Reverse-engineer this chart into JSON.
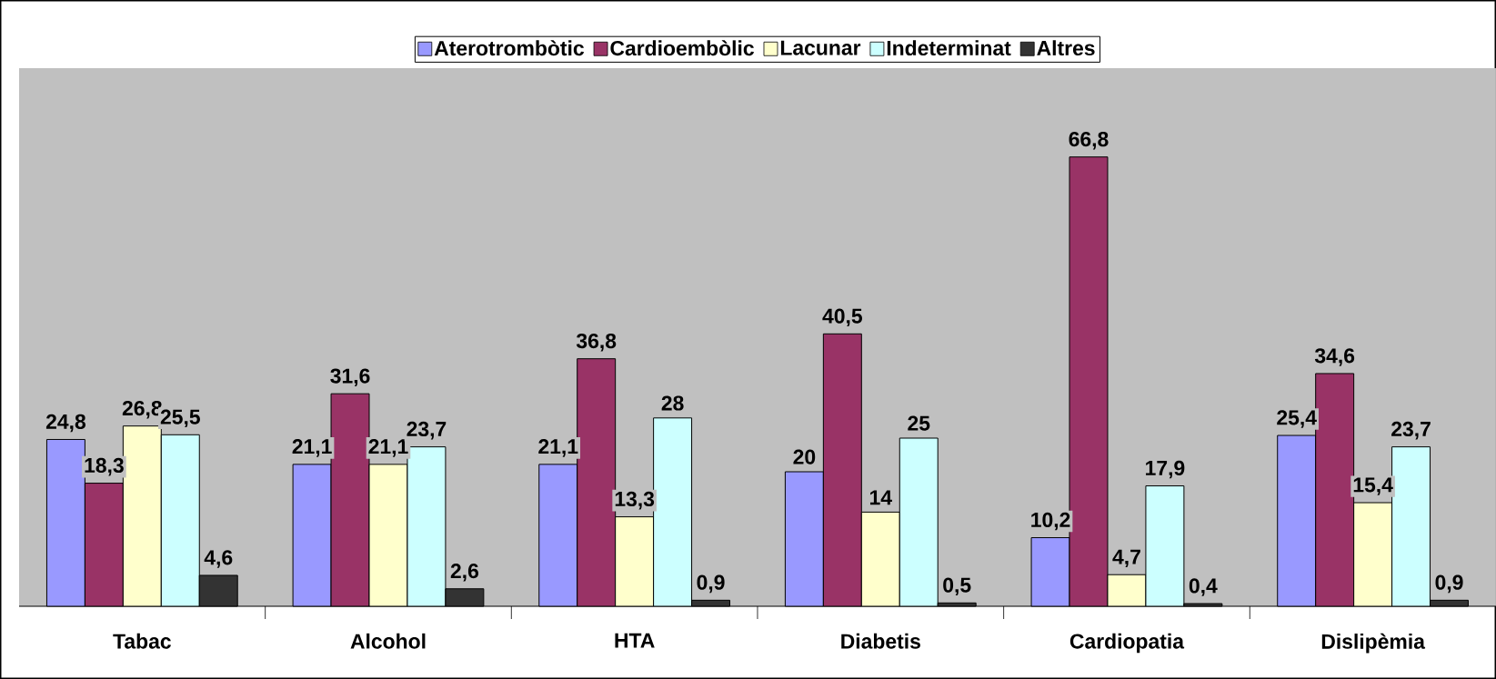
{
  "chart_data": {
    "type": "bar",
    "categories": [
      "Tabac",
      "Alcohol",
      "HTA",
      "Diabetis",
      "Cardiopatia",
      "Dislipèmia"
    ],
    "ylim": [
      0,
      80
    ],
    "tick_labels": "x",
    "legend": "top",
    "series": [
      {
        "name": "Aterotrombòtic",
        "color": "#9999ff",
        "values": [
          24.8,
          21.1,
          21.1,
          20,
          10.2,
          25.4
        ],
        "value_labels": [
          "24,8",
          "21,1",
          "21,1",
          "20",
          "10,2",
          "25,4"
        ]
      },
      {
        "name": "Cardioembòlic",
        "color": "#993366",
        "values": [
          18.3,
          31.6,
          36.8,
          40.5,
          66.8,
          34.6
        ],
        "value_labels": [
          "18,3",
          "31,6",
          "36,8",
          "40,5",
          "66,8",
          "34,6"
        ]
      },
      {
        "name": "Lacunar",
        "color": "#ffffcc",
        "values": [
          26.8,
          21.1,
          13.3,
          14,
          4.7,
          15.4
        ],
        "value_labels": [
          "26,8",
          "21,1",
          "13,3",
          "14",
          "4,7",
          "15,4"
        ]
      },
      {
        "name": "Indeterminat",
        "color": "#ccffff",
        "values": [
          25.5,
          23.7,
          28,
          25,
          17.9,
          23.7
        ],
        "value_labels": [
          "25,5",
          "23,7",
          "28",
          "25",
          "17,9",
          "23,7"
        ]
      },
      {
        "name": "Altres",
        "color": "#333333",
        "values": [
          4.6,
          2.6,
          0.9,
          0.5,
          0.4,
          0.9
        ],
        "value_labels": [
          "4,6",
          "2,6",
          "0,9",
          "0,5",
          "0,4",
          "0,9"
        ]
      }
    ]
  }
}
